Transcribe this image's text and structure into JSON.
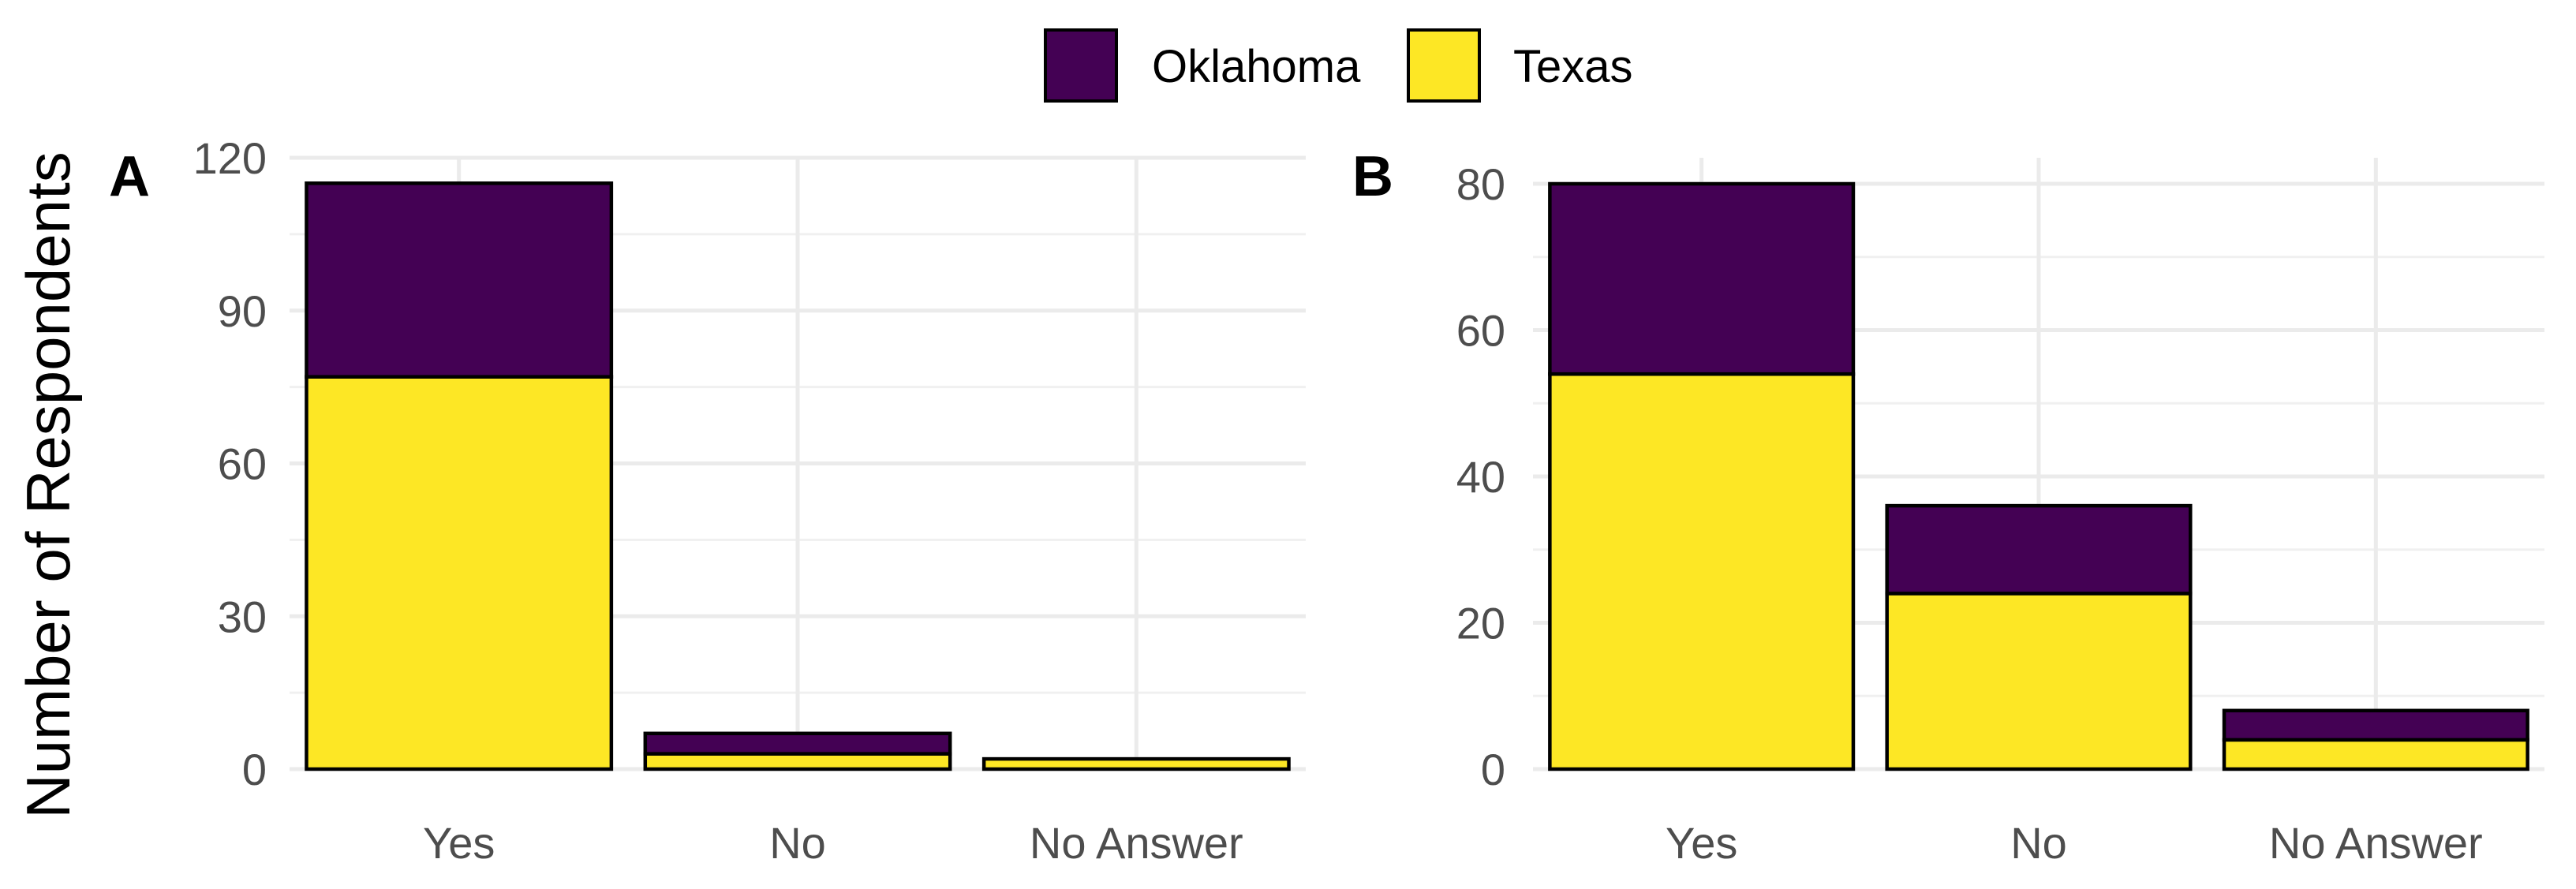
{
  "chart_data": {
    "type": "bar",
    "stacked": true,
    "ylabel": "Number of Respondents",
    "legend_position": "top",
    "series_colors": {
      "Oklahoma": "#440154",
      "Texas": "#fde725"
    },
    "legend": [
      {
        "name": "Oklahoma",
        "color": "#440154"
      },
      {
        "name": "Texas",
        "color": "#fde725"
      }
    ],
    "panels": [
      {
        "panel_label": "A",
        "categories": [
          "Yes",
          "No",
          "No Answer"
        ],
        "ylim": [
          0,
          120
        ],
        "yticks": [
          0,
          30,
          60,
          90,
          120
        ],
        "ytick_labels": [
          "0",
          "30",
          "60",
          "90",
          "120"
        ],
        "series": [
          {
            "name": "Texas",
            "values": [
              77,
              3,
              2
            ]
          },
          {
            "name": "Oklahoma",
            "values": [
              38,
              4,
              0
            ]
          }
        ]
      },
      {
        "panel_label": "B",
        "categories": [
          "Yes",
          "No",
          "No Answer"
        ],
        "ylim": [
          0,
          80
        ],
        "yticks": [
          0,
          20,
          40,
          60,
          80
        ],
        "ytick_labels": [
          "0",
          "20",
          "40",
          "60",
          "80"
        ],
        "series": [
          {
            "name": "Texas",
            "values": [
              54,
              24,
              4
            ]
          },
          {
            "name": "Oklahoma",
            "values": [
              26,
              12,
              4
            ]
          }
        ]
      }
    ]
  }
}
